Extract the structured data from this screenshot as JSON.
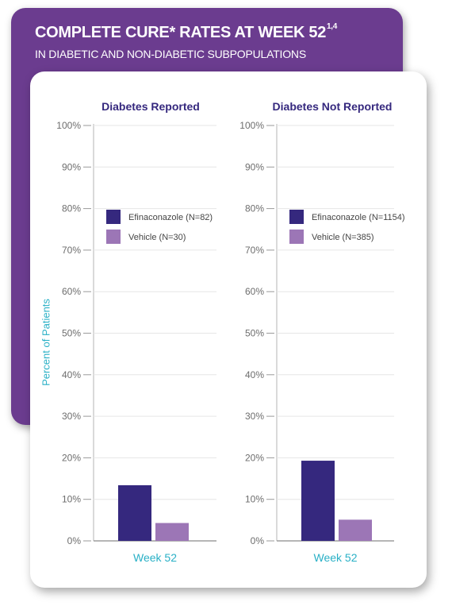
{
  "header": {
    "title": "COMPLETE CURE* RATES AT WEEK 52",
    "title_sup": "1,4",
    "subtitle": "IN DIABETIC AND NON-DIABETIC SUBPOPULATIONS"
  },
  "colors": {
    "banner": "#6b3c8f",
    "efinaconazole": "#35287e",
    "vehicle": "#9c76b6",
    "axis_title": "#29b0c6",
    "panel_title": "#35287e"
  },
  "chart_data": [
    {
      "type": "bar",
      "title": "Diabetes Reported",
      "ylabel": "Percent of Patients",
      "ylim": [
        0,
        100
      ],
      "yticks": [
        "0%",
        "10%",
        "20%",
        "30%",
        "40%",
        "50%",
        "60%",
        "70%",
        "80%",
        "90%",
        "100%"
      ],
      "categories": [
        "Week 52"
      ],
      "legend_position": "top-left inside",
      "series": [
        {
          "name": "Efinaconazole (N=82)",
          "values": [
            13.4
          ]
        },
        {
          "name": "Vehicle (N=30)",
          "values": [
            4.3
          ]
        }
      ]
    },
    {
      "type": "bar",
      "title": "Diabetes Not Reported",
      "ylabel": "Percent of Patients",
      "ylim": [
        0,
        100
      ],
      "yticks": [
        "0%",
        "10%",
        "20%",
        "30%",
        "40%",
        "50%",
        "60%",
        "70%",
        "80%",
        "90%",
        "100%"
      ],
      "categories": [
        "Week 52"
      ],
      "legend_position": "top-left inside",
      "series": [
        {
          "name": "Efinaconazole (N=1154)",
          "values": [
            19.3
          ]
        },
        {
          "name": "Vehicle (N=385)",
          "values": [
            5.1
          ]
        }
      ]
    }
  ]
}
